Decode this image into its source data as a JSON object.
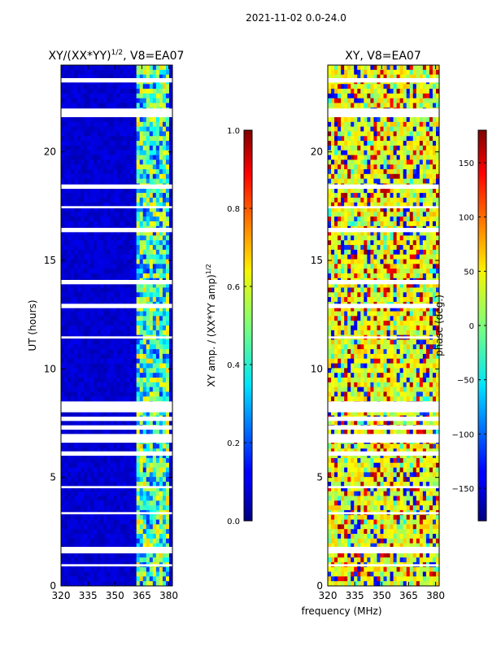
{
  "figure_title": "2021-11-02 0.0-24.0",
  "shared_xlabel": "frequency (MHz)",
  "chart_data": [
    {
      "type": "heatmap",
      "title_main": "XY/(XX*YY)",
      "title_exp": "1/2",
      "title_tail": ", V8=EA07",
      "xlabel": "",
      "ylabel": "UT (hours)",
      "xlim": [
        320,
        382
      ],
      "ylim": [
        0,
        24
      ],
      "xticks": [
        320,
        335,
        350,
        365,
        380
      ],
      "yticks": [
        0,
        5,
        10,
        15,
        20
      ],
      "colorbar": {
        "label_main": "XY amp. / (XX*YY amp)",
        "label_exp": "1/2",
        "range": [
          0,
          1
        ],
        "ticks": [
          "0.0",
          "0.2",
          "0.4",
          "0.6",
          "0.8",
          "1.0"
        ],
        "tick_values": [
          0,
          0.2,
          0.4,
          0.6,
          0.8,
          1.0
        ],
        "colormap": "jet"
      },
      "description_values": {
        "background_level": 0.05,
        "bright_band_MHz": [
          362,
          381
        ],
        "bright_band_level": 0.5,
        "flagged_time_ranges_hours": [
          [
            0.9,
            1.0
          ],
          [
            1.5,
            1.8
          ],
          [
            3.3,
            3.4
          ],
          [
            4.5,
            4.6
          ],
          [
            6.0,
            6.2
          ],
          [
            6.6,
            7.0
          ],
          [
            7.2,
            7.4
          ],
          [
            7.6,
            7.8
          ],
          [
            8.0,
            8.5
          ],
          [
            11.4,
            11.5
          ],
          [
            12.8,
            13.0
          ],
          [
            13.9,
            14.1
          ],
          [
            16.3,
            16.5
          ],
          [
            17.4,
            17.5
          ],
          [
            18.3,
            18.5
          ],
          [
            21.6,
            22.0
          ],
          [
            23.2,
            23.4
          ]
        ]
      }
    },
    {
      "type": "heatmap",
      "title_main": "XY, V8=EA07",
      "title_exp": "",
      "title_tail": "",
      "xlabel": "frequency (MHz)",
      "ylabel": "",
      "xlim": [
        320,
        382
      ],
      "ylim": [
        0,
        24
      ],
      "xticks": [
        320,
        335,
        350,
        365,
        380
      ],
      "yticks": [
        0,
        5,
        10,
        15,
        20
      ],
      "colorbar": {
        "label_main": "phase (deg.)",
        "label_exp": "",
        "range": [
          -180,
          180
        ],
        "ticks": [
          "−150",
          "−100",
          "−50",
          "0",
          "50",
          "100",
          "150"
        ],
        "tick_values": [
          -150,
          -100,
          -50,
          0,
          50,
          100,
          150
        ],
        "colormap": "jet"
      },
      "description_values": {
        "background_phase_deg": 40,
        "flagged_time_ranges_hours": [
          [
            0.9,
            1.0
          ],
          [
            1.5,
            1.8
          ],
          [
            3.3,
            3.4
          ],
          [
            4.5,
            4.6
          ],
          [
            6.0,
            6.2
          ],
          [
            6.6,
            7.0
          ],
          [
            7.2,
            7.4
          ],
          [
            7.6,
            7.8
          ],
          [
            8.0,
            8.5
          ],
          [
            11.4,
            11.5
          ],
          [
            12.8,
            13.0
          ],
          [
            13.9,
            14.1
          ],
          [
            16.3,
            16.5
          ],
          [
            17.4,
            17.5
          ],
          [
            18.3,
            18.5
          ],
          [
            21.6,
            22.0
          ],
          [
            23.2,
            23.4
          ]
        ]
      }
    }
  ]
}
